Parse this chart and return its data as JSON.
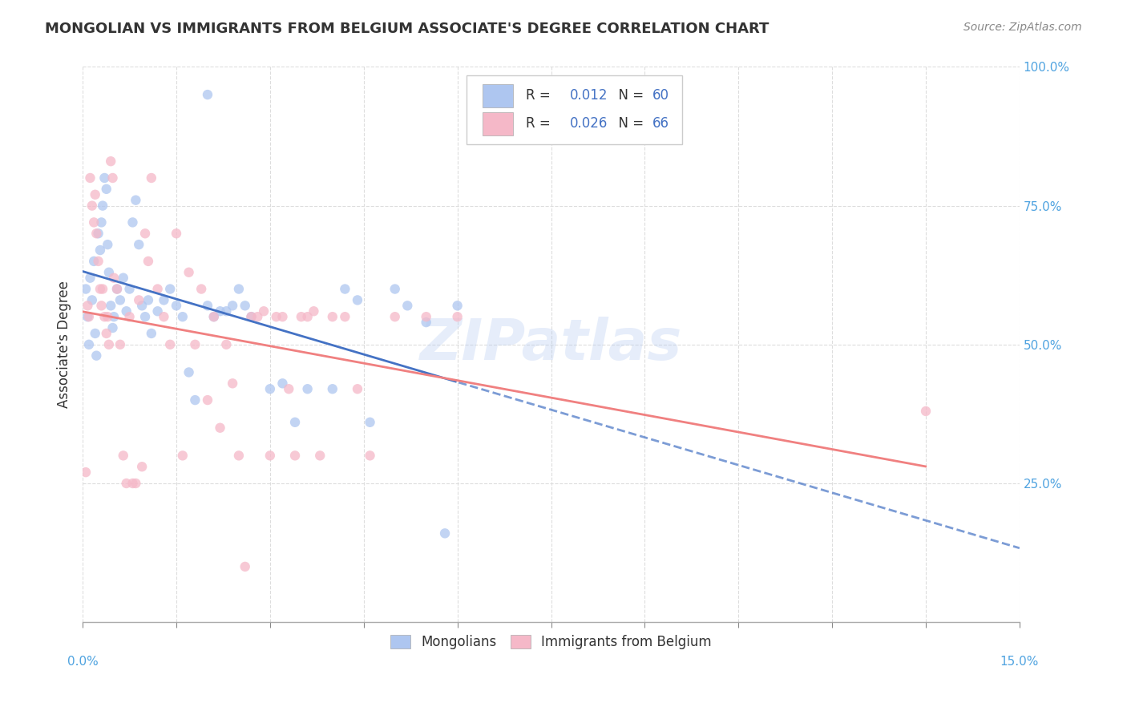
{
  "title": "MONGOLIAN VS IMMIGRANTS FROM BELGIUM ASSOCIATE'S DEGREE CORRELATION CHART",
  "source": "Source: ZipAtlas.com",
  "ylabel": "Associate's Degree",
  "xlim": [
    0.0,
    15.0
  ],
  "ylim": [
    0.0,
    100.0
  ],
  "background_color": "#ffffff",
  "grid_color": "#dddddd",
  "watermark": "ZIPatlas",
  "scatter_blue": "#aec6f0",
  "scatter_pink": "#f5b8c8",
  "scatter_alpha": 0.75,
  "scatter_size": 80,
  "blue_line_color": "#4472c4",
  "pink_line_color": "#f08080",
  "legend_R_color": "#4472c4",
  "legend_text_color": "#333333",
  "mongolian_x": [
    0.05,
    0.08,
    0.1,
    0.12,
    0.15,
    0.18,
    0.2,
    0.22,
    0.25,
    0.28,
    0.3,
    0.32,
    0.35,
    0.38,
    0.4,
    0.42,
    0.45,
    0.48,
    0.5,
    0.55,
    0.6,
    0.65,
    0.7,
    0.75,
    0.8,
    0.85,
    0.9,
    0.95,
    1.0,
    1.05,
    1.1,
    1.2,
    1.3,
    1.4,
    1.5,
    1.6,
    1.7,
    1.8,
    2.0,
    2.1,
    2.2,
    2.3,
    2.4,
    2.5,
    2.6,
    2.7,
    3.0,
    3.2,
    3.4,
    3.6,
    4.0,
    4.2,
    4.4,
    4.6,
    5.0,
    5.2,
    5.5,
    5.8,
    6.0,
    2.0
  ],
  "mongolian_y": [
    60,
    55,
    50,
    62,
    58,
    65,
    52,
    48,
    70,
    67,
    72,
    75,
    80,
    78,
    68,
    63,
    57,
    53,
    55,
    60,
    58,
    62,
    56,
    60,
    72,
    76,
    68,
    57,
    55,
    58,
    52,
    56,
    58,
    60,
    57,
    55,
    45,
    40,
    57,
    55,
    56,
    56,
    57,
    60,
    57,
    55,
    42,
    43,
    36,
    42,
    42,
    60,
    58,
    36,
    60,
    57,
    54,
    16,
    57,
    95
  ],
  "belgium_x": [
    0.05,
    0.08,
    0.1,
    0.12,
    0.15,
    0.18,
    0.2,
    0.22,
    0.25,
    0.28,
    0.3,
    0.32,
    0.35,
    0.38,
    0.4,
    0.42,
    0.45,
    0.48,
    0.5,
    0.55,
    0.6,
    0.65,
    0.7,
    0.75,
    0.8,
    0.85,
    0.9,
    0.95,
    1.0,
    1.05,
    1.1,
    1.2,
    1.3,
    1.4,
    1.5,
    1.6,
    1.7,
    1.8,
    1.9,
    2.0,
    2.1,
    2.2,
    2.3,
    2.4,
    2.5,
    2.6,
    2.7,
    2.8,
    2.9,
    3.0,
    3.1,
    3.2,
    3.3,
    3.4,
    3.5,
    3.6,
    3.7,
    3.8,
    4.0,
    4.2,
    4.4,
    4.6,
    5.0,
    5.5,
    6.0,
    13.5
  ],
  "belgium_y": [
    27,
    57,
    55,
    80,
    75,
    72,
    77,
    70,
    65,
    60,
    57,
    60,
    55,
    52,
    55,
    50,
    83,
    80,
    62,
    60,
    50,
    30,
    25,
    55,
    25,
    25,
    58,
    28,
    70,
    65,
    80,
    60,
    55,
    50,
    70,
    30,
    63,
    50,
    60,
    40,
    55,
    35,
    50,
    43,
    30,
    10,
    55,
    55,
    56,
    30,
    55,
    55,
    42,
    30,
    55,
    55,
    56,
    30,
    55,
    55,
    42,
    30,
    55,
    55,
    55,
    38
  ]
}
